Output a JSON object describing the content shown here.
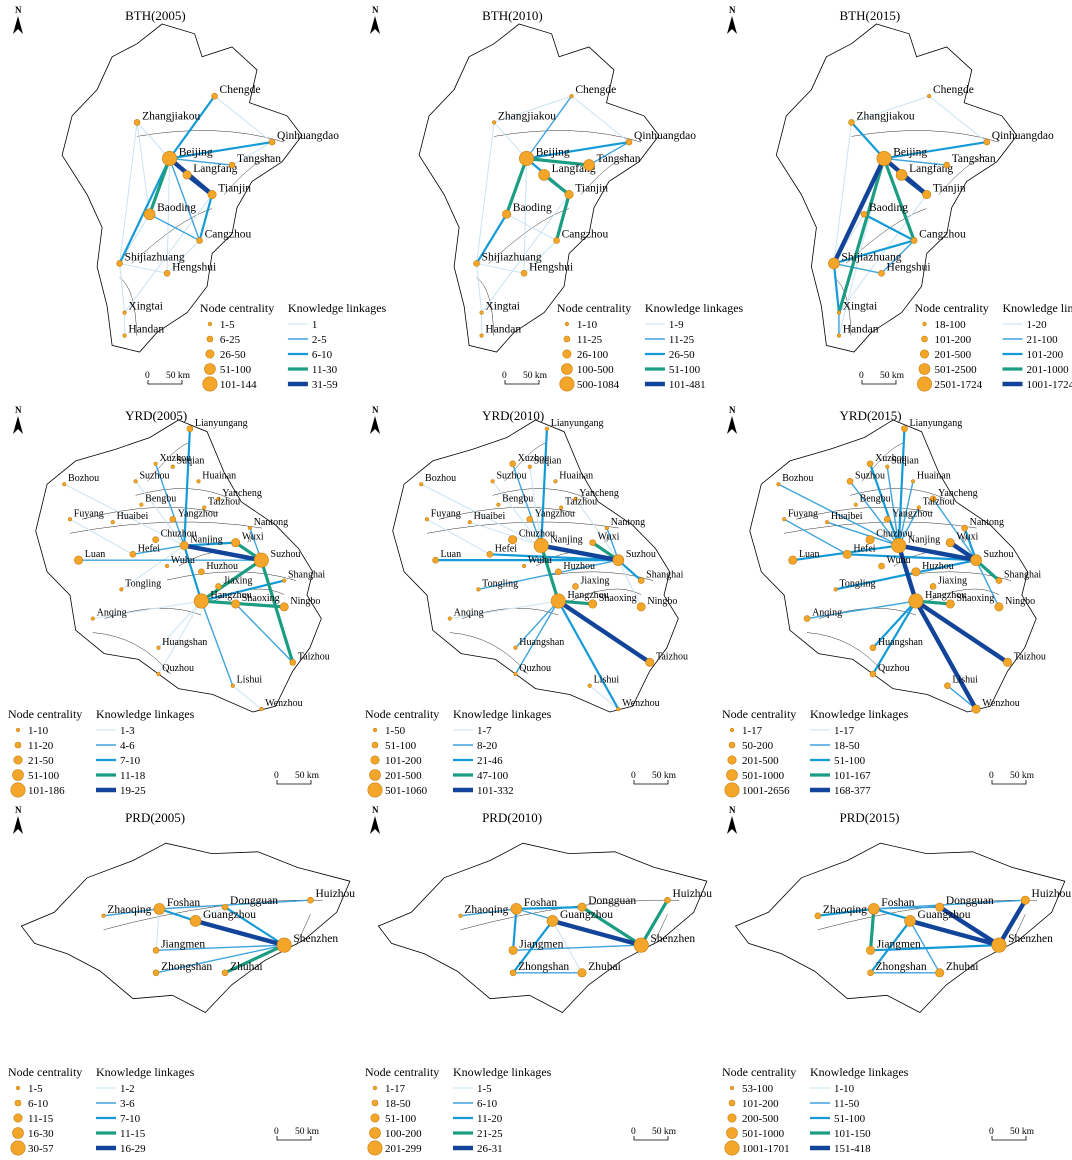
{
  "colors": {
    "node_fill": "#f4a62a",
    "node_stroke": "#c77f10",
    "link_tier1": "#c9e3f2",
    "link_tier2": "#3ea4dc",
    "link_tier3": "#149bd7",
    "link_tier4": "#1a9d82",
    "link_tier5": "#12449a",
    "boundary": "#000000"
  },
  "common": {
    "north_label": "N",
    "scale_zero": "0",
    "scale_label": "50 km",
    "node_header": "Node centrality",
    "link_header": "Knowledge linkages"
  },
  "panels": [
    {
      "title": "BTH(2005)",
      "cities": [
        "Zhangjiakou",
        "Chengde",
        "Beijing",
        "Qinhuangdao",
        "Langfang",
        "Tangshan",
        "Tianjin",
        "Baoding",
        "Cangzhou",
        "Shijiazhuang",
        "Hengshui",
        "Xingtai",
        "Handan"
      ],
      "node_legend": [
        "1-5",
        "6-25",
        "26-50",
        "51-100",
        "101-144"
      ],
      "link_legend": [
        "1",
        "2-5",
        "6-10",
        "11-30",
        "31-59"
      ]
    },
    {
      "title": "BTH(2010)",
      "cities": [
        "Zhangjiakou",
        "Chengde",
        "Beijing",
        "Qinhuangdao",
        "Langfang",
        "Tangshan",
        "Tianjin",
        "Baoding",
        "Cangzhou",
        "Shijiazhuang",
        "Hengshui",
        "Xingtai",
        "Handan"
      ],
      "node_legend": [
        "1-10",
        "11-25",
        "26-100",
        "100-500",
        "500-1084"
      ],
      "link_legend": [
        "1-9",
        "11-25",
        "26-50",
        "51-100",
        "101-481"
      ]
    },
    {
      "title": "BTH(2015)",
      "cities": [
        "Zhangjiakou",
        "Chengde",
        "Beijing",
        "Qinhuangdao",
        "Langfang",
        "Tangshan",
        "Tianjin",
        "Baoding",
        "Cangzhou",
        "Shijiazhuang",
        "Hengshui",
        "Xingtai",
        "Handan"
      ],
      "node_legend": [
        "18-100",
        "101-200",
        "201-500",
        "501-2500",
        "2501-1724"
      ],
      "link_legend": [
        "1-20",
        "21-100",
        "101-200",
        "201-1000",
        "1001-1724"
      ]
    },
    {
      "title": "YRD(2005)",
      "cities": [
        "Lianyungang",
        "Xuzhou",
        "Suqian",
        "Suzhou",
        "Huainan",
        "Bozhou",
        "Yancheng",
        "Bengbu",
        "Taizhou",
        "Fuyang",
        "Huaibei",
        "Yangzhou",
        "Nantong",
        "Chuzhou",
        "Nanjing",
        "Wuxi",
        "Hefei",
        "Luan",
        "Wuhu",
        "Suzhou",
        "Huzhou",
        "Shanghai",
        "Jiaxing",
        "Tongling",
        "Hangzhou",
        "Shaoxing",
        "Ningbo",
        "Anqing",
        "Huangshan",
        "Taizhou",
        "Quzhou",
        "Lishui",
        "Wenzhou"
      ],
      "node_legend": [
        "1-10",
        "11-20",
        "21-50",
        "51-100",
        "101-186"
      ],
      "link_legend": [
        "1-3",
        "4-6",
        "7-10",
        "11-18",
        "19-25"
      ]
    },
    {
      "title": "YRD(2010)",
      "cities": [
        "Lianyungang",
        "Xuzhou",
        "Suqian",
        "Suzhou",
        "Huainan",
        "Bozhou",
        "Yancheng",
        "Bengbu",
        "Taizhou",
        "Fuyang",
        "Huaibei",
        "Yangzhou",
        "Nantong",
        "Chuzhou",
        "Nanjing",
        "Wuxi",
        "Hefei",
        "Luan",
        "Wuhu",
        "Suzhou",
        "Huzhou",
        "Shanghai",
        "Jiaxing",
        "Tongling",
        "Hangzhou",
        "Shaoxing",
        "Ningbo",
        "Anqing",
        "Huangshan",
        "Taizhou",
        "Quzhou",
        "Lishui",
        "Wenzhou"
      ],
      "node_legend": [
        "1-50",
        "51-100",
        "101-200",
        "201-500",
        "501-1060"
      ],
      "link_legend": [
        "1-7",
        "8-20",
        "21-46",
        "47-100",
        "101-332"
      ]
    },
    {
      "title": "YRD(2015)",
      "cities": [
        "Lianyungang",
        "Xuzhou",
        "Suqian",
        "Suzhou",
        "Huainan",
        "Bozhou",
        "Yancheng",
        "Bengbu",
        "Taizhou",
        "Fuyang",
        "Huaibei",
        "Yangzhou",
        "Nantong",
        "Chuzhou",
        "Nanjing",
        "Wuxi",
        "Hefei",
        "Luan",
        "Wuhu",
        "Suzhou",
        "Huzhou",
        "Shanghai",
        "Jiaxing",
        "Tongling",
        "Hangzhou",
        "Shaoxing",
        "Ningbo",
        "Anqing",
        "Huangshan",
        "Taizhou",
        "Quzhou",
        "Lishui",
        "Wenzhou"
      ],
      "node_legend": [
        "1-17",
        "50-200",
        "201-500",
        "501-1000",
        "1001-2656"
      ],
      "link_legend": [
        "1-17",
        "18-50",
        "51-100",
        "101-167",
        "168-377"
      ]
    },
    {
      "title": "PRD(2005)",
      "cities": [
        "Zhaoqing",
        "Foshan",
        "Dongguan",
        "Huizhou",
        "Guangzhou",
        "Jiangmen",
        "Shenzhen",
        "Zhongshan",
        "Zhuhai"
      ],
      "node_legend": [
        "1-5",
        "6-10",
        "11-15",
        "16-30",
        "30-57"
      ],
      "link_legend": [
        "1-2",
        "3-6",
        "7-10",
        "11-15",
        "16-29"
      ]
    },
    {
      "title": "PRD(2010)",
      "cities": [
        "Zhaoqing",
        "Foshan",
        "Dongguan",
        "Huizhou",
        "Guangzhou",
        "Jiangmen",
        "Shenzhen",
        "Zhongshan",
        "Zhuhai"
      ],
      "node_legend": [
        "1-17",
        "18-50",
        "51-100",
        "100-200",
        "201-299"
      ],
      "link_legend": [
        "1-5",
        "6-10",
        "11-20",
        "21-25",
        "26-31"
      ]
    },
    {
      "title": "PRD(2015)",
      "cities": [
        "Zhaoqing",
        "Foshan",
        "Dongguan",
        "Huizhou",
        "Guangzhou",
        "Jiangmen",
        "Shenzhen",
        "Zhongshan",
        "Zhuhai"
      ],
      "node_legend": [
        "53-100",
        "101-200",
        "200-500",
        "501-1000",
        "1001-1701"
      ],
      "link_legend": [
        "1-10",
        "11-50",
        "51-100",
        "101-150",
        "151-418"
      ]
    }
  ]
}
